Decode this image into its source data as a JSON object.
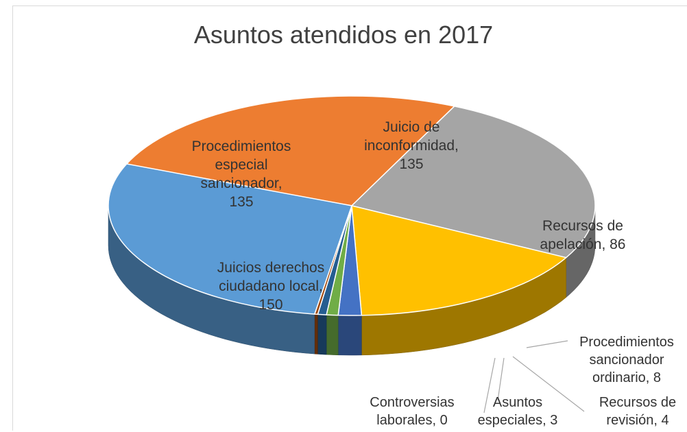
{
  "chart_data": {
    "type": "pie",
    "title": "Asuntos atendidos en 2017",
    "slices": [
      {
        "label_lines": [
          "Procedimientos",
          "especial",
          "sancionador,",
          "135"
        ],
        "name": "Procedimientos especial sancionador",
        "value": 135,
        "color": "#ed7d31"
      },
      {
        "label_lines": [
          "Juicio de",
          "inconformidad,",
          "135"
        ],
        "name": "Juicio de inconformidad",
        "value": 135,
        "color": "#a5a5a5"
      },
      {
        "label_lines": [
          "Recursos de",
          "apelación, 86"
        ],
        "name": "Recursos de apelación",
        "value": 86,
        "color": "#ffc000"
      },
      {
        "label_lines": [
          "Procedimientos",
          "sancionador",
          "ordinario, 8"
        ],
        "name": "Procedimientos sancionador ordinario",
        "value": 8,
        "color": "#4472c4"
      },
      {
        "label_lines": [
          "Recursos de",
          "revisión, 4"
        ],
        "name": "Recursos de revisión",
        "value": 4,
        "color": "#70ad47"
      },
      {
        "label_lines": [
          "Asuntos",
          "especiales, 3"
        ],
        "name": "Asuntos especiales",
        "value": 3,
        "color": "#255e91"
      },
      {
        "label_lines": [
          "Controversias",
          "laborales, 0"
        ],
        "name": "Controversias laborales",
        "value": 0,
        "color": "#9e480e"
      },
      {
        "label_lines": [
          "Juicios derechos",
          "ciudadano local,",
          "150"
        ],
        "name": "Juicios derechos ciudadano local",
        "value": 150,
        "color": "#5b9bd5"
      }
    ]
  }
}
